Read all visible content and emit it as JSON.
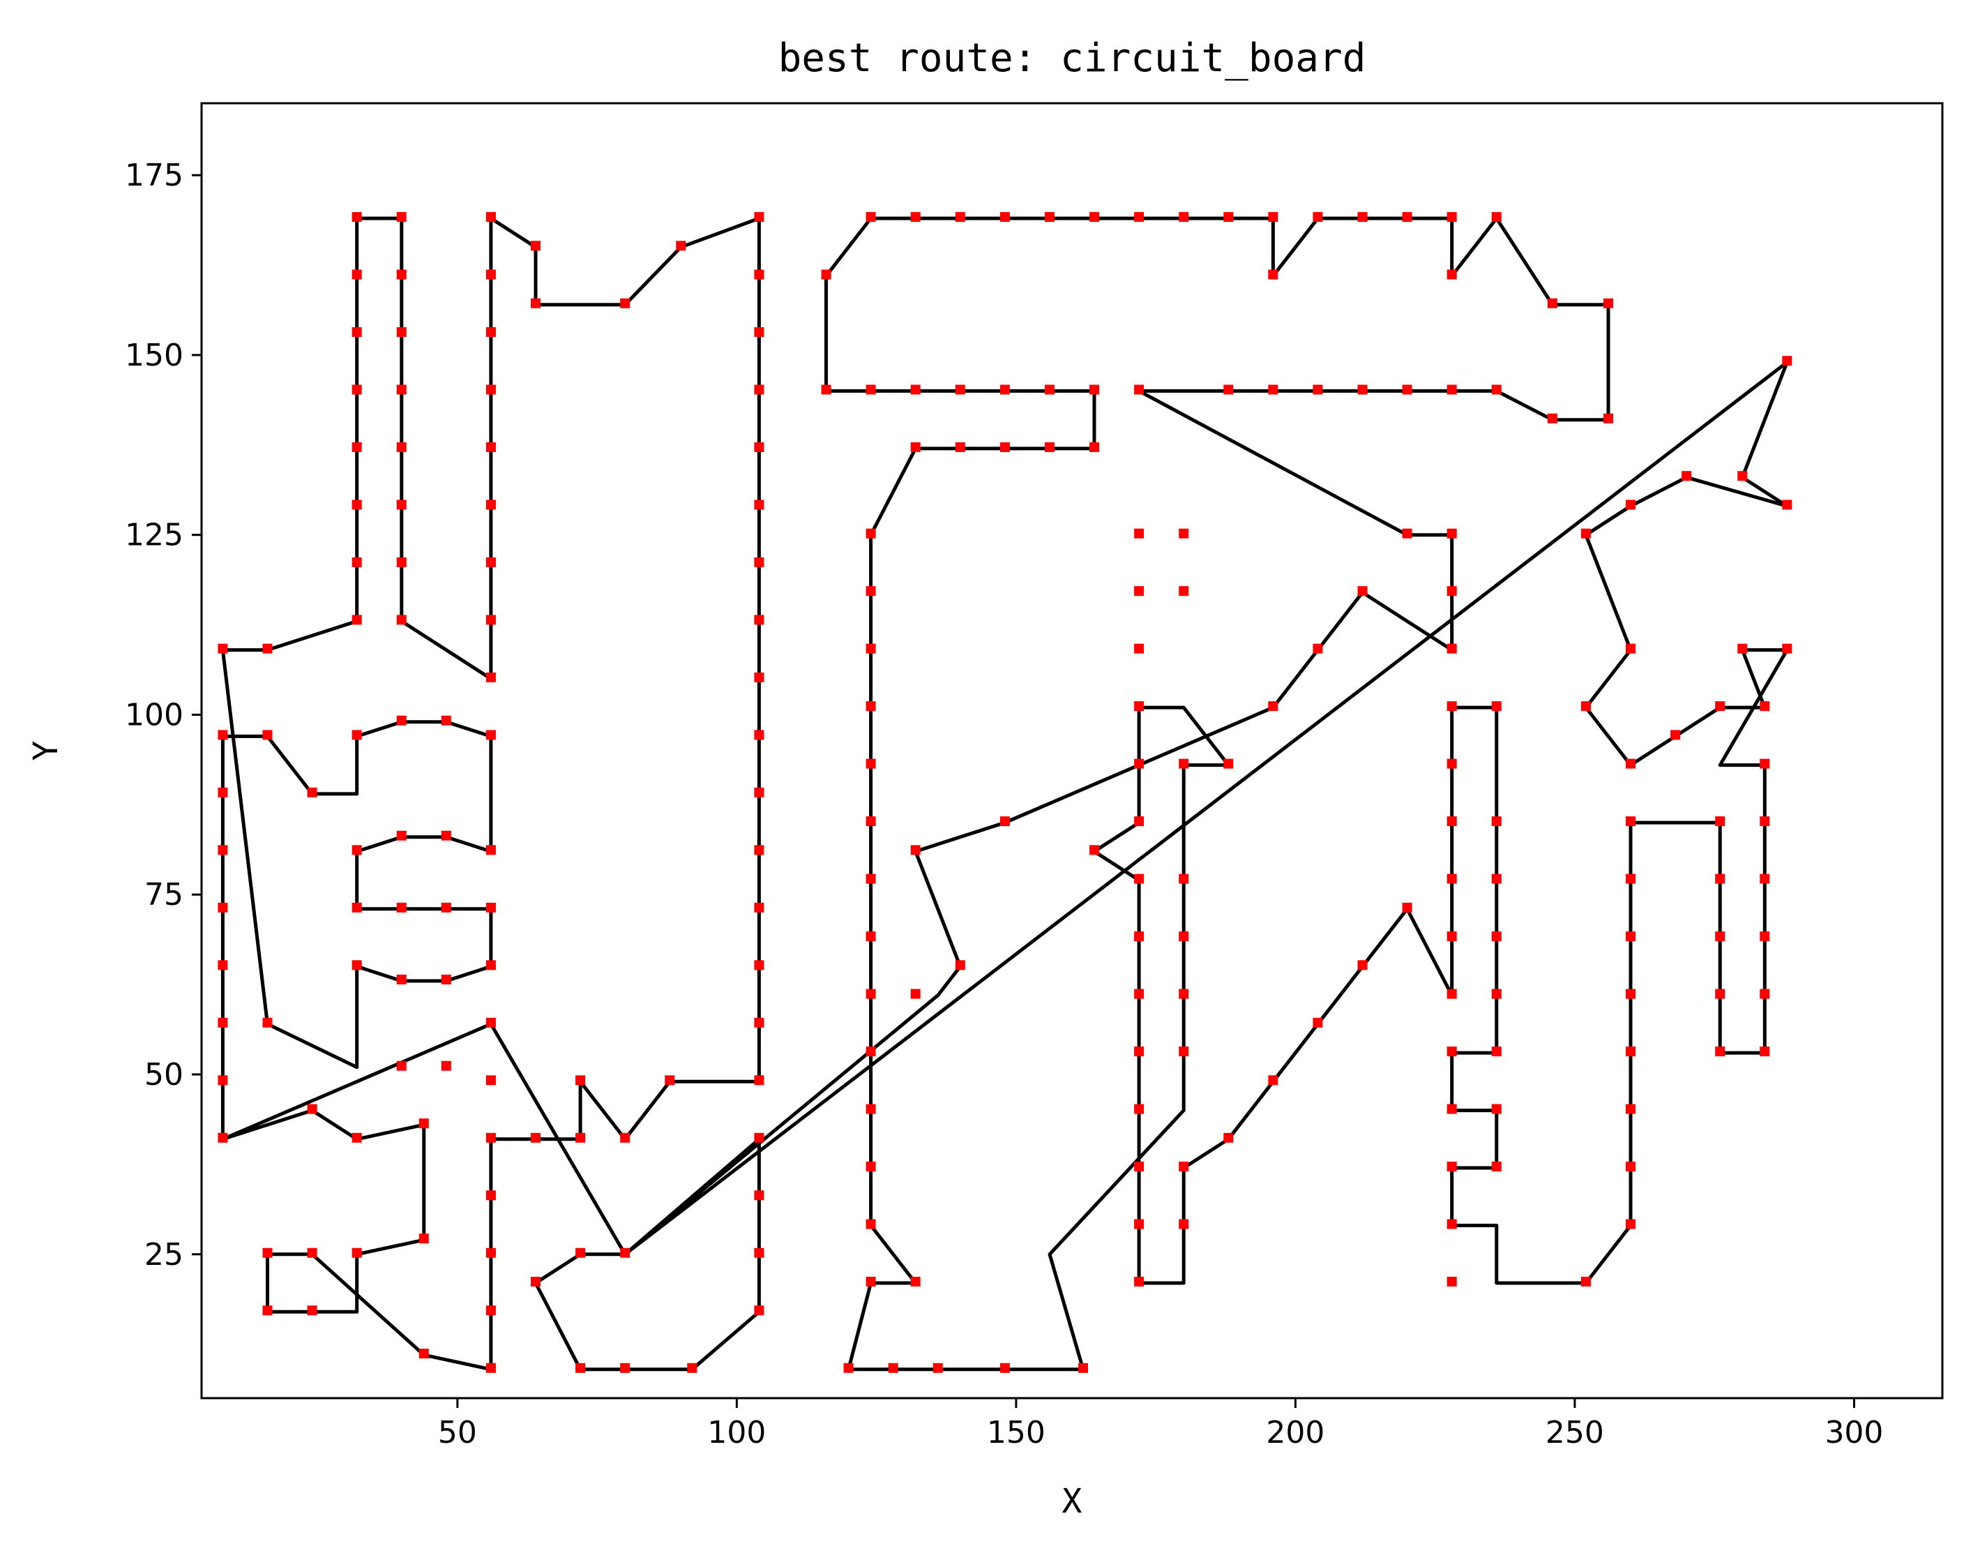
{
  "chart_data": {
    "type": "line",
    "title": "best route: circuit_board",
    "xlabel": "X",
    "ylabel": "Y",
    "xlim": [
      4.2,
      315.8
    ],
    "ylim": [
      5,
      185
    ],
    "xticks": [
      50,
      100,
      150,
      200,
      250,
      300
    ],
    "yticks": [
      25,
      50,
      75,
      100,
      125,
      150,
      175
    ],
    "grid": false,
    "route_color": "#000000",
    "point_color": "#ff0000",
    "route": [
      [
        8,
        41
      ],
      [
        24,
        45
      ],
      [
        32,
        41
      ],
      [
        44,
        43
      ],
      [
        44,
        27
      ],
      [
        32,
        25
      ],
      [
        32,
        17
      ],
      [
        16,
        17
      ],
      [
        16,
        25
      ],
      [
        24,
        25
      ],
      [
        44,
        11
      ],
      [
        56,
        9
      ],
      [
        56,
        41
      ],
      [
        72,
        41
      ],
      [
        72,
        49
      ],
      [
        80,
        41
      ],
      [
        88,
        49
      ],
      [
        104,
        49
      ],
      [
        104,
        169
      ],
      [
        90,
        165
      ],
      [
        80,
        157
      ],
      [
        64,
        157
      ],
      [
        64,
        165
      ],
      [
        56,
        169
      ],
      [
        56,
        105
      ],
      [
        40,
        113
      ],
      [
        40,
        169
      ],
      [
        32,
        169
      ],
      [
        32,
        113
      ],
      [
        16,
        109
      ],
      [
        8,
        109
      ],
      [
        16,
        57
      ],
      [
        32,
        51
      ],
      [
        32,
        65
      ],
      [
        40,
        63
      ],
      [
        48,
        63
      ],
      [
        56,
        65
      ],
      [
        56,
        73
      ],
      [
        32,
        73
      ],
      [
        32,
        81
      ],
      [
        40,
        83
      ],
      [
        48,
        83
      ],
      [
        56,
        81
      ],
      [
        56,
        97
      ],
      [
        48,
        99
      ],
      [
        40,
        99
      ],
      [
        32,
        97
      ],
      [
        32,
        89
      ],
      [
        24,
        89
      ],
      [
        16,
        97
      ],
      [
        8,
        97
      ],
      [
        8,
        41
      ],
      [
        56,
        57
      ],
      [
        80,
        25
      ],
      [
        72,
        25
      ],
      [
        64,
        21
      ],
      [
        72,
        9
      ],
      [
        92,
        9
      ],
      [
        104,
        17
      ],
      [
        104,
        41
      ],
      [
        80,
        25
      ],
      [
        136,
        61
      ],
      [
        140,
        65
      ],
      [
        132,
        81
      ],
      [
        148,
        85
      ],
      [
        196,
        101
      ],
      [
        212,
        117
      ],
      [
        228,
        109
      ],
      [
        228,
        125
      ],
      [
        220,
        125
      ],
      [
        172,
        145
      ],
      [
        236,
        145
      ],
      [
        246,
        141
      ],
      [
        256,
        141
      ],
      [
        256,
        157
      ],
      [
        246,
        157
      ],
      [
        236,
        169
      ],
      [
        228,
        161
      ],
      [
        228,
        169
      ],
      [
        204,
        169
      ],
      [
        196,
        161
      ],
      [
        196,
        169
      ],
      [
        124,
        169
      ],
      [
        116,
        161
      ],
      [
        116,
        145
      ],
      [
        164,
        145
      ],
      [
        164,
        137
      ],
      [
        132,
        137
      ],
      [
        124,
        125
      ],
      [
        124,
        29
      ],
      [
        132,
        21
      ],
      [
        124,
        21
      ],
      [
        120,
        9
      ],
      [
        162,
        9
      ],
      [
        156,
        25
      ],
      [
        180,
        45
      ],
      [
        180,
        93
      ],
      [
        188,
        93
      ],
      [
        180,
        101
      ],
      [
        172,
        101
      ],
      [
        172,
        85
      ],
      [
        164,
        81
      ],
      [
        172,
        77
      ],
      [
        172,
        21
      ],
      [
        180,
        21
      ],
      [
        180,
        37
      ],
      [
        188,
        41
      ],
      [
        220,
        73
      ],
      [
        228,
        61
      ],
      [
        228,
        101
      ],
      [
        236,
        101
      ],
      [
        236,
        53
      ],
      [
        228,
        53
      ],
      [
        228,
        45
      ],
      [
        236,
        45
      ],
      [
        236,
        37
      ],
      [
        228,
        37
      ],
      [
        228,
        29
      ],
      [
        236,
        29
      ],
      [
        236,
        21
      ],
      [
        252,
        21
      ],
      [
        260,
        29
      ],
      [
        260,
        85
      ],
      [
        276,
        85
      ],
      [
        276,
        53
      ],
      [
        284,
        53
      ],
      [
        284,
        93
      ],
      [
        276,
        93
      ],
      [
        288,
        109
      ],
      [
        280,
        109
      ],
      [
        284,
        101
      ],
      [
        276,
        101
      ],
      [
        260,
        93
      ],
      [
        252,
        101
      ],
      [
        260,
        109
      ],
      [
        252,
        125
      ],
      [
        260,
        129
      ],
      [
        270,
        133
      ],
      [
        288,
        129
      ],
      [
        280,
        133
      ],
      [
        288,
        149
      ],
      [
        80,
        25
      ]
    ],
    "points": [
      [
        8,
        109
      ],
      [
        16,
        109
      ],
      [
        8,
        97
      ],
      [
        16,
        97
      ],
      [
        24,
        89
      ],
      [
        32,
        97
      ],
      [
        40,
        99
      ],
      [
        48,
        99
      ],
      [
        56,
        97
      ],
      [
        8,
        89
      ],
      [
        8,
        81
      ],
      [
        8,
        73
      ],
      [
        8,
        65
      ],
      [
        8,
        57
      ],
      [
        8,
        49
      ],
      [
        8,
        41
      ],
      [
        24,
        45
      ],
      [
        32,
        41
      ],
      [
        44,
        43
      ],
      [
        44,
        27
      ],
      [
        32,
        25
      ],
      [
        16,
        25
      ],
      [
        24,
        25
      ],
      [
        16,
        17
      ],
      [
        24,
        17
      ],
      [
        44,
        11
      ],
      [
        56,
        9
      ],
      [
        56,
        17
      ],
      [
        56,
        25
      ],
      [
        56,
        33
      ],
      [
        56,
        41
      ],
      [
        64,
        41
      ],
      [
        72,
        41
      ],
      [
        72,
        49
      ],
      [
        80,
        41
      ],
      [
        88,
        49
      ],
      [
        64,
        21
      ],
      [
        72,
        25
      ],
      [
        80,
        25
      ],
      [
        72,
        9
      ],
      [
        80,
        9
      ],
      [
        92,
        9
      ],
      [
        104,
        17
      ],
      [
        104,
        25
      ],
      [
        104,
        33
      ],
      [
        104,
        41
      ],
      [
        32,
        169
      ],
      [
        40,
        169
      ],
      [
        32,
        161
      ],
      [
        40,
        161
      ],
      [
        32,
        153
      ],
      [
        40,
        153
      ],
      [
        32,
        145
      ],
      [
        40,
        145
      ],
      [
        32,
        137
      ],
      [
        40,
        137
      ],
      [
        32,
        129
      ],
      [
        40,
        129
      ],
      [
        32,
        121
      ],
      [
        40,
        121
      ],
      [
        32,
        113
      ],
      [
        40,
        113
      ],
      [
        56,
        169
      ],
      [
        56,
        161
      ],
      [
        56,
        153
      ],
      [
        56,
        145
      ],
      [
        56,
        137
      ],
      [
        56,
        129
      ],
      [
        56,
        121
      ],
      [
        56,
        113
      ],
      [
        56,
        105
      ],
      [
        64,
        165
      ],
      [
        64,
        157
      ],
      [
        80,
        157
      ],
      [
        90,
        165
      ],
      [
        104,
        169
      ],
      [
        104,
        161
      ],
      [
        104,
        153
      ],
      [
        104,
        145
      ],
      [
        104,
        137
      ],
      [
        104,
        129
      ],
      [
        104,
        121
      ],
      [
        104,
        113
      ],
      [
        104,
        105
      ],
      [
        104,
        97
      ],
      [
        104,
        89
      ],
      [
        104,
        81
      ],
      [
        104,
        73
      ],
      [
        104,
        65
      ],
      [
        104,
        57
      ],
      [
        104,
        49
      ],
      [
        32,
        81
      ],
      [
        40,
        83
      ],
      [
        48,
        83
      ],
      [
        56,
        81
      ],
      [
        32,
        73
      ],
      [
        40,
        73
      ],
      [
        48,
        73
      ],
      [
        56,
        73
      ],
      [
        32,
        65
      ],
      [
        40,
        63
      ],
      [
        48,
        63
      ],
      [
        56,
        65
      ],
      [
        16,
        57
      ],
      [
        56,
        57
      ],
      [
        40,
        51
      ],
      [
        48,
        51
      ],
      [
        56,
        49
      ],
      [
        124,
        169
      ],
      [
        132,
        169
      ],
      [
        140,
        169
      ],
      [
        148,
        169
      ],
      [
        156,
        169
      ],
      [
        164,
        169
      ],
      [
        172,
        169
      ],
      [
        180,
        169
      ],
      [
        188,
        169
      ],
      [
        196,
        169
      ],
      [
        204,
        169
      ],
      [
        212,
        169
      ],
      [
        220,
        169
      ],
      [
        228,
        169
      ],
      [
        236,
        169
      ],
      [
        116,
        161
      ],
      [
        196,
        161
      ],
      [
        228,
        161
      ],
      [
        246,
        157
      ],
      [
        256,
        157
      ],
      [
        116,
        145
      ],
      [
        124,
        145
      ],
      [
        132,
        145
      ],
      [
        140,
        145
      ],
      [
        148,
        145
      ],
      [
        156,
        145
      ],
      [
        164,
        145
      ],
      [
        172,
        145
      ],
      [
        188,
        145
      ],
      [
        196,
        145
      ],
      [
        204,
        145
      ],
      [
        212,
        145
      ],
      [
        220,
        145
      ],
      [
        228,
        145
      ],
      [
        236,
        145
      ],
      [
        246,
        141
      ],
      [
        256,
        141
      ],
      [
        132,
        137
      ],
      [
        140,
        137
      ],
      [
        148,
        137
      ],
      [
        156,
        137
      ],
      [
        164,
        137
      ],
      [
        124,
        125
      ],
      [
        124,
        117
      ],
      [
        124,
        109
      ],
      [
        124,
        101
      ],
      [
        124,
        93
      ],
      [
        124,
        85
      ],
      [
        124,
        77
      ],
      [
        124,
        69
      ],
      [
        124,
        61
      ],
      [
        124,
        53
      ],
      [
        124,
        45
      ],
      [
        124,
        37
      ],
      [
        124,
        29
      ],
      [
        124,
        21
      ],
      [
        132,
        21
      ],
      [
        120,
        9
      ],
      [
        128,
        9
      ],
      [
        136,
        9
      ],
      [
        148,
        9
      ],
      [
        162,
        9
      ],
      [
        132,
        81
      ],
      [
        132,
        61
      ],
      [
        140,
        65
      ],
      [
        148,
        85
      ],
      [
        164,
        81
      ],
      [
        172,
        125
      ],
      [
        180,
        125
      ],
      [
        172,
        117
      ],
      [
        180,
        117
      ],
      [
        172,
        109
      ],
      [
        172,
        101
      ],
      [
        172,
        93
      ],
      [
        172,
        85
      ],
      [
        172,
        77
      ],
      [
        180,
        77
      ],
      [
        172,
        69
      ],
      [
        180,
        69
      ],
      [
        172,
        61
      ],
      [
        180,
        61
      ],
      [
        172,
        53
      ],
      [
        180,
        53
      ],
      [
        172,
        45
      ],
      [
        172,
        37
      ],
      [
        180,
        37
      ],
      [
        172,
        29
      ],
      [
        180,
        29
      ],
      [
        172,
        21
      ],
      [
        180,
        93
      ],
      [
        188,
        93
      ],
      [
        188,
        41
      ],
      [
        196,
        101
      ],
      [
        204,
        109
      ],
      [
        212,
        117
      ],
      [
        220,
        125
      ],
      [
        228,
        125
      ],
      [
        228,
        117
      ],
      [
        228,
        109
      ],
      [
        196,
        49
      ],
      [
        204,
        57
      ],
      [
        212,
        65
      ],
      [
        220,
        73
      ],
      [
        228,
        101
      ],
      [
        236,
        101
      ],
      [
        228,
        93
      ],
      [
        228,
        85
      ],
      [
        236,
        85
      ],
      [
        228,
        77
      ],
      [
        236,
        77
      ],
      [
        228,
        69
      ],
      [
        236,
        69
      ],
      [
        228,
        61
      ],
      [
        236,
        61
      ],
      [
        228,
        53
      ],
      [
        236,
        53
      ],
      [
        228,
        45
      ],
      [
        236,
        45
      ],
      [
        228,
        37
      ],
      [
        236,
        37
      ],
      [
        228,
        29
      ],
      [
        228,
        21
      ],
      [
        252,
        21
      ],
      [
        260,
        29
      ],
      [
        260,
        37
      ],
      [
        260,
        45
      ],
      [
        260,
        53
      ],
      [
        260,
        61
      ],
      [
        260,
        69
      ],
      [
        260,
        77
      ],
      [
        260,
        85
      ],
      [
        276,
        85
      ],
      [
        276,
        77
      ],
      [
        284,
        77
      ],
      [
        276,
        69
      ],
      [
        284,
        69
      ],
      [
        276,
        61
      ],
      [
        284,
        61
      ],
      [
        276,
        53
      ],
      [
        284,
        53
      ],
      [
        284,
        85
      ],
      [
        284,
        93
      ],
      [
        260,
        93
      ],
      [
        268,
        97
      ],
      [
        276,
        101
      ],
      [
        284,
        101
      ],
      [
        252,
        101
      ],
      [
        260,
        109
      ],
      [
        280,
        109
      ],
      [
        288,
        109
      ],
      [
        252,
        125
      ],
      [
        260,
        129
      ],
      [
        270,
        133
      ],
      [
        280,
        133
      ],
      [
        288,
        129
      ],
      [
        288,
        149
      ]
    ]
  }
}
